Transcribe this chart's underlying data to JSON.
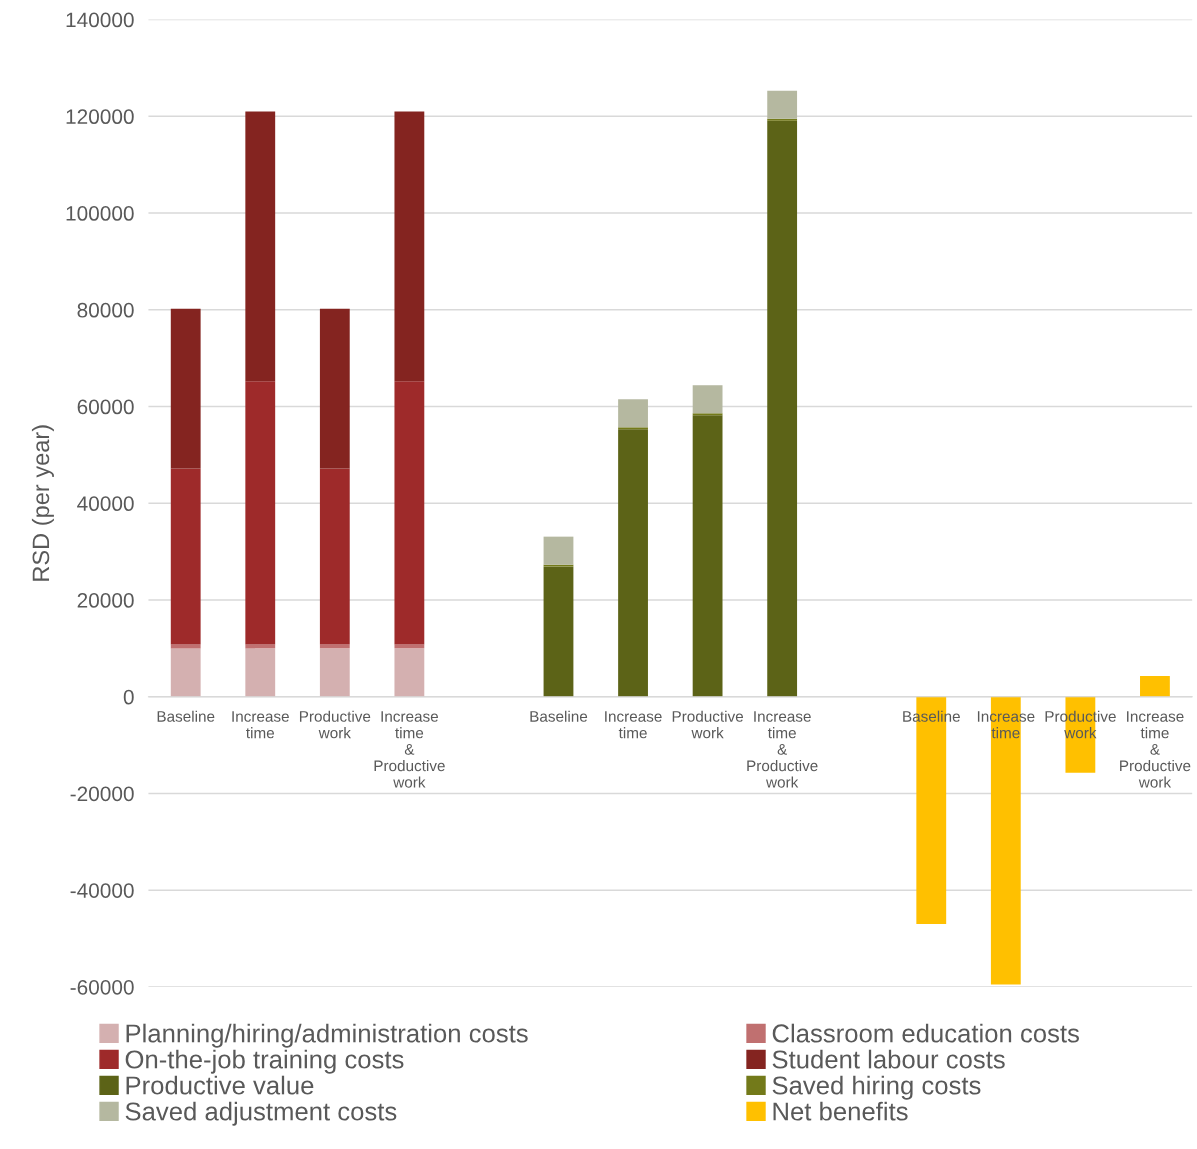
{
  "chart_data": {
    "type": "bar",
    "stacked": true,
    "ylabel": "RSD (per year)",
    "categories": [
      "Baseline",
      "Increase time",
      "Productive work",
      "Increase time & Productive work",
      null,
      "Baseline",
      "Increase time",
      "Productive work",
      "Increase time & Productive work",
      null,
      "Baseline",
      "Increase time",
      "Productive work",
      "Increase time & Productive work"
    ],
    "series": [
      {
        "name": "Planning/hiring/administration costs",
        "color": "#d4b0b0",
        "values": [
          10000,
          10000,
          10000,
          10000,
          null,
          null,
          null,
          null,
          null,
          null,
          null,
          null,
          null,
          null
        ]
      },
      {
        "name": "Classroom education costs",
        "color": "#c07070",
        "values": [
          800,
          800,
          800,
          800,
          null,
          null,
          null,
          null,
          null,
          null,
          null,
          null,
          null,
          null
        ]
      },
      {
        "name": "On-the-job training costs",
        "color": "#9e2a2a",
        "values": [
          36400,
          54400,
          36400,
          54400,
          null,
          null,
          null,
          null,
          null,
          null,
          null,
          null,
          null,
          null
        ]
      },
      {
        "name": "Student labour costs",
        "color": "#842420",
        "values": [
          33000,
          55800,
          33000,
          55800,
          null,
          null,
          null,
          null,
          null,
          null,
          null,
          null,
          null,
          null
        ]
      },
      {
        "name": "Productive value",
        "color": "#5c6317",
        "values": [
          null,
          null,
          null,
          null,
          null,
          26900,
          55300,
          58200,
          119100,
          null,
          null,
          null,
          null,
          null
        ]
      },
      {
        "name": "Saved hiring costs",
        "color": "#737a1a",
        "values": [
          null,
          null,
          null,
          null,
          null,
          400,
          400,
          400,
          400,
          null,
          null,
          null,
          null,
          null
        ]
      },
      {
        "name": "Saved adjustment costs",
        "color": "#b5b8a0",
        "values": [
          null,
          null,
          null,
          null,
          null,
          5800,
          5800,
          5800,
          5800,
          null,
          null,
          null,
          null,
          null
        ]
      },
      {
        "name": "Net benefits",
        "color": "#ffc000",
        "values": [
          null,
          null,
          null,
          null,
          null,
          null,
          null,
          null,
          null,
          null,
          -47000,
          -59500,
          -15700,
          4300
        ]
      }
    ],
    "ylim": [
      -60000,
      140000
    ],
    "yticks": [
      -60000,
      -40000,
      -20000,
      0,
      20000,
      40000,
      60000,
      80000,
      100000,
      120000,
      140000
    ],
    "grid": "y",
    "legend": "bottom"
  }
}
